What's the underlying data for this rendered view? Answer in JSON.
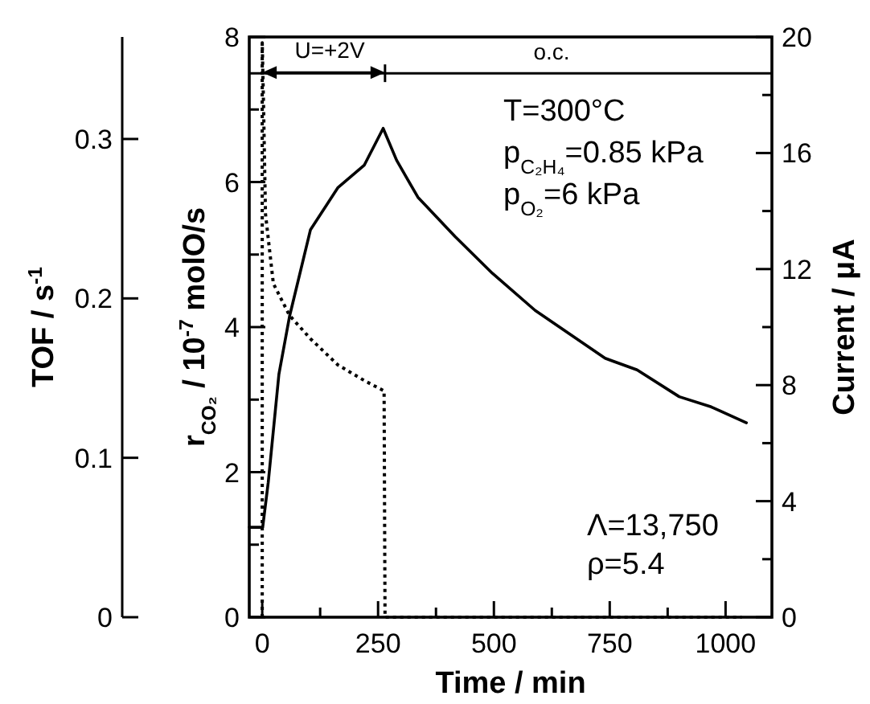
{
  "chart_data": {
    "type": "line",
    "xlabel": "Time / min",
    "ylabel": "r$_{CO₂}$ / 10$^{-7}$ molO/s",
    "y2label": "Current / μA",
    "y3label": "TOF / s$^{-1}$",
    "xlim": [
      -28,
      1100
    ],
    "xticks": [
      0,
      {
        "value": 125,
        "label": null
      },
      250,
      {
        "value": 375,
        "label": null
      },
      500,
      {
        "value": 625,
        "label": null
      },
      750,
      {
        "value": 875,
        "label": null
      },
      1000
    ],
    "ylim": [
      0,
      8
    ],
    "yticks": [
      0,
      {
        "value": 1,
        "label": null
      },
      2,
      {
        "value": 3,
        "label": null
      },
      4,
      {
        "value": 5,
        "label": null
      },
      6,
      {
        "value": 7,
        "label": null
      },
      8
    ],
    "y2lim": [
      0,
      20
    ],
    "y2ticks": [
      0,
      {
        "value": 2,
        "label": null
      },
      4,
      {
        "value": 6,
        "label": null
      },
      8,
      {
        "value": 10,
        "label": null
      },
      12,
      {
        "value": 14,
        "label": null
      },
      16,
      {
        "value": 18,
        "label": null
      },
      20
    ],
    "y3lim": [
      0,
      0.364
    ],
    "y3ticks": [
      0,
      0.1,
      0.2,
      0.3
    ],
    "series": [
      {
        "color": "#000000",
        "line_style": "solid",
        "x": [
          -28,
          1,
          13,
          36,
          59,
          104,
          163,
          220,
          261,
          290,
          336,
          416,
          497,
          589,
          740,
          809,
          900,
          969,
          1045
        ],
        "values": [
          1.24,
          1.24,
          1.86,
          3.35,
          4.15,
          5.34,
          5.92,
          6.23,
          6.74,
          6.3,
          5.79,
          5.25,
          4.74,
          4.23,
          3.57,
          3.41,
          3.04,
          2.9,
          2.68
        ]
      },
      {
        "color": "#000000",
        "line_style": "dotted",
        "axis": "y2",
        "x": [
          0,
          0,
          3,
          7,
          24,
          59,
          104,
          163,
          221,
          263,
          265,
          1035
        ],
        "values": [
          0,
          19.8,
          17.5,
          13.9,
          11.5,
          10.4,
          9.6,
          8.7,
          8.15,
          7.8,
          0,
          0
        ]
      }
    ],
    "ref_lines": [
      {
        "axis": "y",
        "value": 7.5
      }
    ],
    "annotations": [
      "U=+2V",
      "o.c.",
      "T=300°C",
      "p$_{C₂H₄}$=0.85 kPa",
      "p$_{O₂}$=6 kPa",
      "Λ=13,750",
      "ρ=5.4"
    ],
    "marker": "none"
  }
}
